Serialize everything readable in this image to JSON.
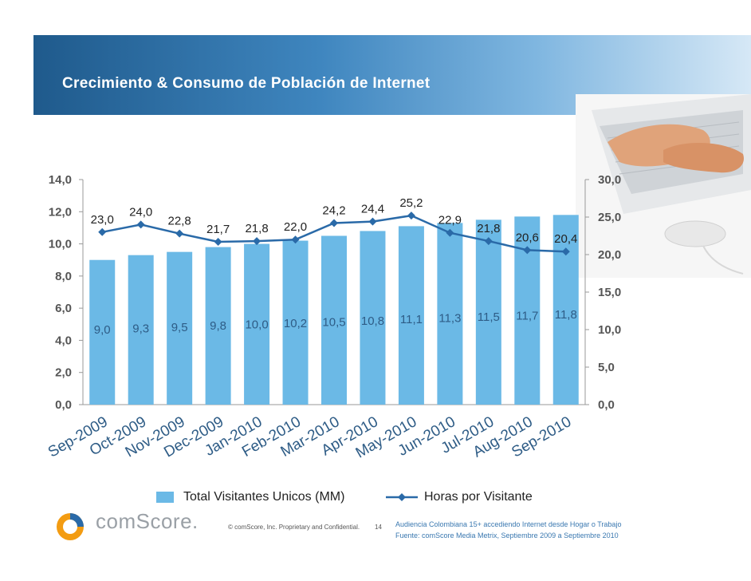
{
  "header": {
    "title": "Crecimiento & Consumo de Población de Internet"
  },
  "colors": {
    "banner_dark": "#1f5a8c",
    "banner_light": "#7fb6e0",
    "bars": "#6bb9e6",
    "line": "#2a6aa8",
    "category_text": "#2e5c86"
  },
  "chart_data": {
    "type": "bar",
    "categories": [
      "Sep-2009",
      "Oct-2009",
      "Nov-2009",
      "Dec-2009",
      "Jan-2010",
      "Feb-2010",
      "Mar-2010",
      "Apr-2010",
      "May-2010",
      "Jun-2010",
      "Jul-2010",
      "Aug-2010",
      "Sep-2010"
    ],
    "series": [
      {
        "name": "Total Visitantes Unicos (MM)",
        "type": "bar",
        "axis": "left",
        "values": [
          9.0,
          9.3,
          9.5,
          9.8,
          10.0,
          10.2,
          10.5,
          10.8,
          11.1,
          11.3,
          11.5,
          11.7,
          11.8
        ],
        "labels": [
          "9,0",
          "9,3",
          "9,5",
          "9,8",
          "10,0",
          "10,2",
          "10,5",
          "10,8",
          "11,1",
          "11,3",
          "11,5",
          "11,7",
          "11,8"
        ]
      },
      {
        "name": "Horas por Visitante",
        "type": "line",
        "axis": "right",
        "values": [
          23.0,
          24.0,
          22.8,
          21.7,
          21.8,
          22.0,
          24.2,
          24.4,
          25.2,
          22.9,
          21.8,
          20.6,
          20.4
        ],
        "labels": [
          "23,0",
          "24,0",
          "22,8",
          "21,7",
          "21,8",
          "22,0",
          "24,2",
          "24,4",
          "25,2",
          "22,9",
          "21,8",
          "20,6",
          "20,4"
        ]
      }
    ],
    "y_left": {
      "ylim": [
        0,
        14
      ],
      "ticks": [
        "0,0",
        "2,0",
        "4,0",
        "6,0",
        "8,0",
        "10,0",
        "12,0",
        "14,0"
      ]
    },
    "y_right": {
      "ylim": [
        0,
        30
      ],
      "ticks": [
        "0,0",
        "5,0",
        "10,0",
        "15,0",
        "20,0",
        "25,0",
        "30,0"
      ]
    },
    "grid": false,
    "legend_position": "bottom"
  },
  "legend": {
    "bar_label": "Total Visitantes Unicos (MM)",
    "line_label": "Horas por Visitante"
  },
  "footer": {
    "logo_text": "comScore.",
    "copyright": "© comScore, Inc.  Proprietary and Confidential.",
    "page_number": "14",
    "source_line1": "Audiencia Colombiana 15+ accediendo Internet desde Hogar o Trabajo",
    "source_line2": "Fuente:  comScore Media Metrix, Septiembre 2009 a Septiembre 2010"
  }
}
